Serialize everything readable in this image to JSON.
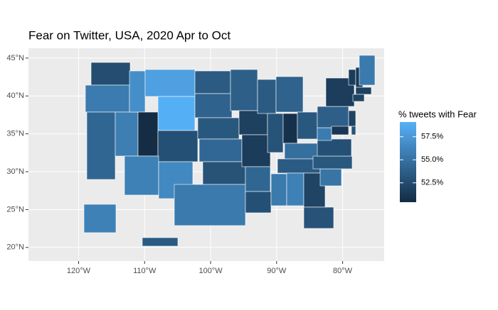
{
  "chart_data": {
    "type": "choropleth",
    "title": "Fear on Twitter, USA, 2020 Apr to Oct",
    "legend_title": "% tweets with Fear",
    "values": [
      52.6,
      55.6,
      54.2,
      55.8,
      56.9,
      58.0,
      59.0,
      50.5,
      52.8,
      56.0,
      56.5,
      53.5,
      54.0,
      53.3,
      54.3,
      53.0,
      55.5,
      53.8,
      51.8,
      51.5,
      54.2,
      52.8,
      53.5,
      53.0,
      55.5,
      54.0,
      50.8,
      54.8,
      53.5,
      56.0,
      53.3,
      52.0,
      53.0,
      55.2,
      53.3,
      52.8,
      55.6,
      53.8,
      51.6,
      52.0,
      51.2,
      51.5,
      51.2,
      55.5,
      51.8,
      52.0,
      53.0,
      56.0,
      53.5
    ],
    "color_low": "#132B43",
    "color_high": "#56B1F7",
    "color_limits": [
      50.4,
      59.1
    ],
    "color_ticks": [
      {
        "value": 52.5,
        "label": "52.5%"
      },
      {
        "value": 55.0,
        "label": "55.0%"
      },
      {
        "value": 57.5,
        "label": "57.5%"
      }
    ],
    "ylim": [
      18.2,
      46.3
    ],
    "yticks": [
      {
        "value": 20,
        "label": "20°N"
      },
      {
        "value": 25,
        "label": "25°N"
      },
      {
        "value": 30,
        "label": "30°N"
      },
      {
        "value": 35,
        "label": "35°N"
      },
      {
        "value": 40,
        "label": "40°N"
      },
      {
        "value": 45,
        "label": "45°N"
      }
    ],
    "xlim": [
      -127.6,
      -73.7
    ],
    "xticks": [
      {
        "value": -120,
        "label": "120°W"
      },
      {
        "value": -110,
        "label": "110°W"
      },
      {
        "value": -100,
        "label": "100°W"
      },
      {
        "value": -90,
        "label": "90°W"
      },
      {
        "value": -80,
        "label": "80°W"
      }
    ],
    "grid": true
  }
}
